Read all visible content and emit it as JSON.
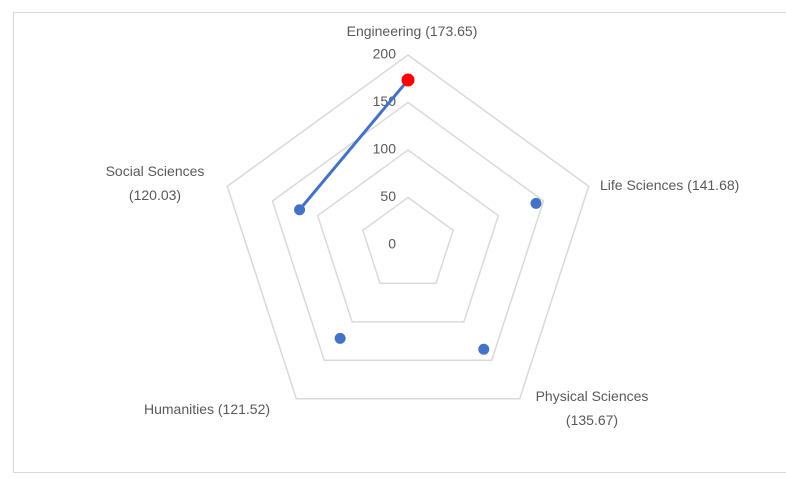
{
  "chart_data": {
    "type": "radar",
    "categories": [
      [
        "Engineering (173.65)"
      ],
      [
        "Life Sciences (141.68)"
      ],
      [
        "Physical Sciences",
        "(135.67)"
      ],
      [
        "Humanities (121.52)"
      ],
      [
        "Social Sciences",
        "(120.03)"
      ]
    ],
    "values": [
      173.65,
      141.68,
      135.67,
      121.52,
      120.03
    ],
    "color": "#4472c4",
    "highlight": {
      "index": 0,
      "color": "#ff0000"
    },
    "rlim": [
      0,
      200
    ],
    "rticks": [
      0,
      50,
      100,
      150,
      200
    ],
    "grid": true
  }
}
